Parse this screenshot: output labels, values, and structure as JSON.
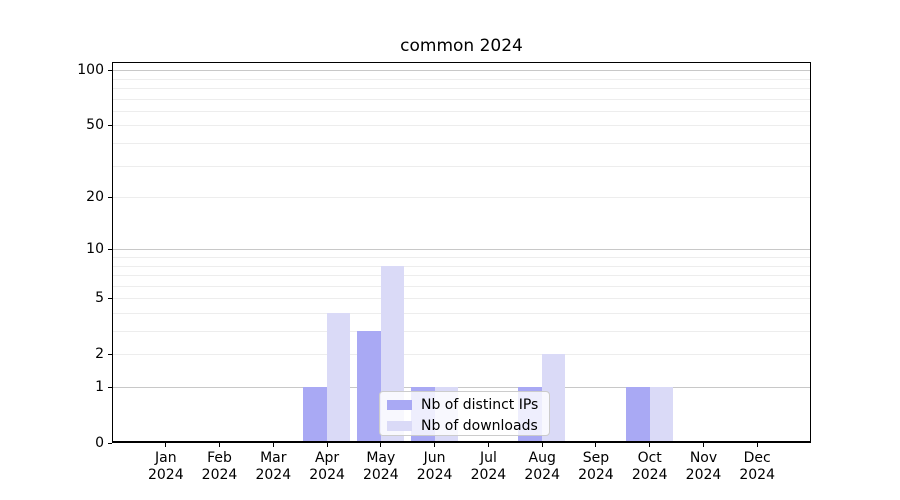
{
  "chart_data": {
    "type": "bar",
    "title": "common 2024",
    "categories": [
      "Jan 2024",
      "Feb 2024",
      "Mar 2024",
      "Apr 2024",
      "May 2024",
      "Jun 2024",
      "Jul 2024",
      "Aug 2024",
      "Sep 2024",
      "Oct 2024",
      "Nov 2024",
      "Dec 2024"
    ],
    "series": [
      {
        "name": "Nb of distinct IPs",
        "color": "#a9a9f4",
        "values": [
          0,
          0,
          0,
          1,
          3,
          1,
          0,
          1,
          0,
          1,
          0,
          0
        ]
      },
      {
        "name": "Nb of downloads",
        "color": "#dadaf7",
        "values": [
          0,
          0,
          0,
          4,
          8,
          1,
          0,
          2,
          0,
          1,
          0,
          0
        ]
      }
    ],
    "xlabel": "",
    "ylabel": "",
    "yscale": "log1p",
    "ylim": [
      0,
      110
    ],
    "ytick_values": [
      0,
      1,
      2,
      5,
      10,
      20,
      50,
      100
    ],
    "grid": {
      "minor_values": [
        2,
        3,
        4,
        5,
        6,
        7,
        8,
        9,
        20,
        30,
        40,
        50,
        60,
        70,
        80,
        90
      ],
      "major_values": [
        1,
        10,
        100
      ]
    },
    "legend": {
      "position": "lower center-right",
      "entries": [
        "Nb of distinct IPs",
        "Nb of downloads"
      ]
    }
  },
  "colors": {
    "background": "#ffffff",
    "spine": "#000000",
    "grid_minor": "#ededed",
    "grid_major": "#c8c8c8",
    "text": "#000000",
    "legend_border": "#cccccc"
  }
}
